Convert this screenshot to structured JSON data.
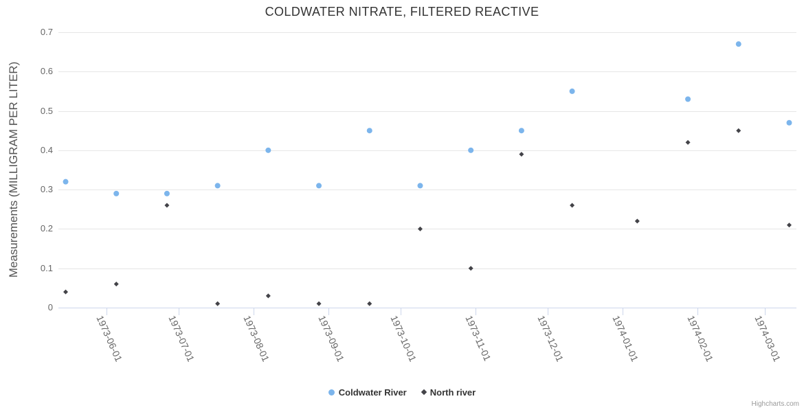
{
  "credits": {
    "text": "Highcharts.com"
  },
  "chart_data": {
    "type": "scatter",
    "title": "COLDWATER NITRATE, FILTERED REACTIVE",
    "xlabel": "",
    "ylabel": "Measurements (MILLIGRAM PER LITER)",
    "ylim": [
      0,
      0.7
    ],
    "yticks": [
      "0",
      "0.1",
      "0.2",
      "0.3",
      "0.4",
      "0.5",
      "0.6",
      "0.7"
    ],
    "xticks": [
      "1973-06-01",
      "1973-07-01",
      "1973-08-01",
      "1973-09-01",
      "1973-10-01",
      "1973-11-01",
      "1973-12-01",
      "1974-01-01",
      "1974-02-01",
      "1974-03-01"
    ],
    "x_range": [
      "1973-05-12",
      "1974-03-14"
    ],
    "grid": true,
    "legend_position": "bottom",
    "grid_color": "#e6e6e6",
    "axis_line_color": "#ccd6eb",
    "label_color": "#666666",
    "title_color": "#333333",
    "axis_title_color": "#555555",
    "credits_color": "#999999",
    "series": [
      {
        "name": "Coldwater River",
        "marker": "circle",
        "color": "#7cb5ec",
        "points": [
          [
            "1973-05-15",
            0.32
          ],
          [
            "1973-06-05",
            0.29
          ],
          [
            "1973-06-26",
            0.29
          ],
          [
            "1973-07-17",
            0.31
          ],
          [
            "1973-08-07",
            0.4
          ],
          [
            "1973-08-28",
            0.31
          ],
          [
            "1973-09-18",
            0.45
          ],
          [
            "1973-10-09",
            0.31
          ],
          [
            "1973-10-30",
            0.4
          ],
          [
            "1973-11-20",
            0.45
          ],
          [
            "1973-12-11",
            0.55
          ],
          [
            "1974-01-28",
            0.53
          ],
          [
            "1974-02-18",
            0.67
          ],
          [
            "1974-03-11",
            0.47
          ]
        ]
      },
      {
        "name": "North river",
        "marker": "diamond",
        "color": "#434348",
        "points": [
          [
            "1973-05-15",
            0.04
          ],
          [
            "1973-06-05",
            0.06
          ],
          [
            "1973-06-26",
            0.26
          ],
          [
            "1973-07-17",
            0.01
          ],
          [
            "1973-08-07",
            0.03
          ],
          [
            "1973-08-28",
            0.01
          ],
          [
            "1973-09-18",
            0.01
          ],
          [
            "1973-10-09",
            0.2
          ],
          [
            "1973-10-30",
            0.1
          ],
          [
            "1973-11-20",
            0.39
          ],
          [
            "1973-12-11",
            0.26
          ],
          [
            "1974-01-07",
            0.22
          ],
          [
            "1974-01-28",
            0.42
          ],
          [
            "1974-02-18",
            0.45
          ],
          [
            "1974-03-11",
            0.21
          ]
        ]
      }
    ]
  }
}
